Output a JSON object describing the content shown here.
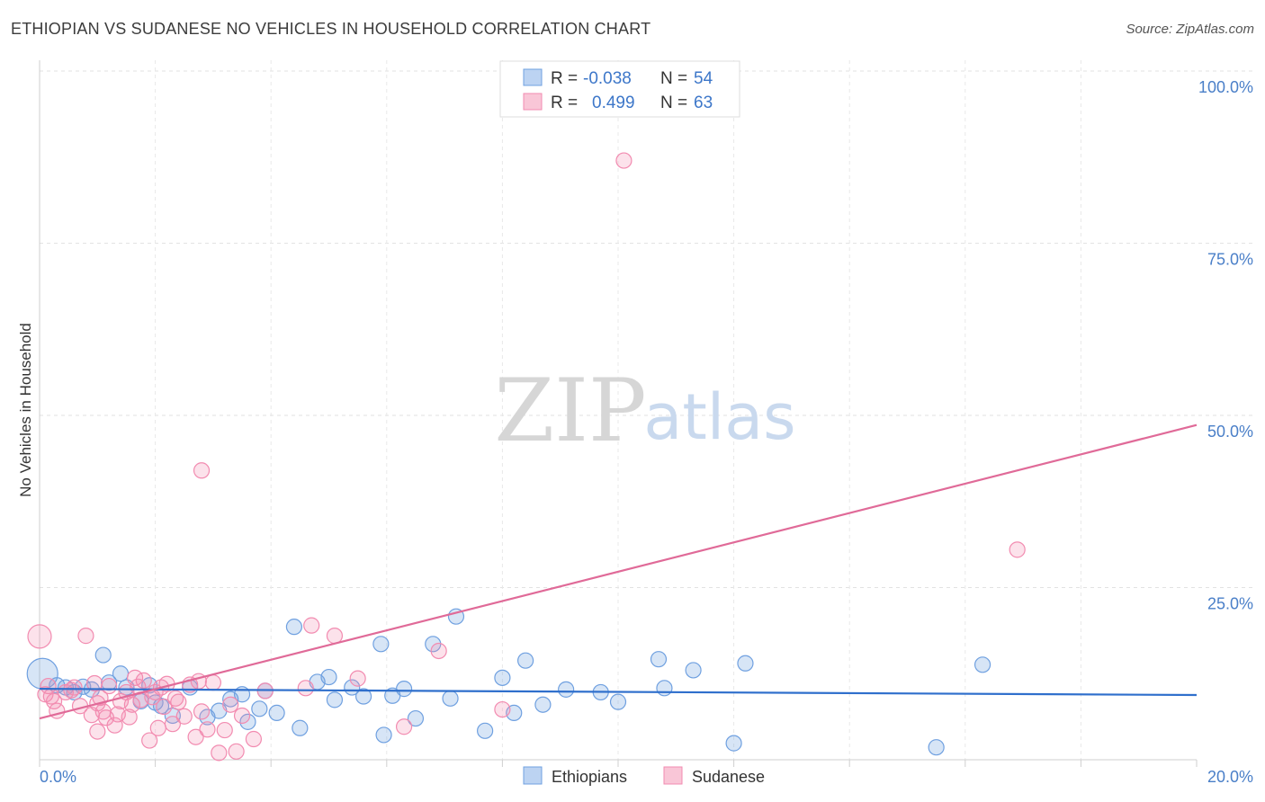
{
  "title": "ETHIOPIAN VS SUDANESE NO VEHICLES IN HOUSEHOLD CORRELATION CHART",
  "source": "Source: ZipAtlas.com",
  "watermark": {
    "zip": "ZIP",
    "atlas": "atlas"
  },
  "legend": {
    "r_label": "R =",
    "n_label": "N =",
    "items": [
      {
        "r": "-0.038",
        "n": "54"
      },
      {
        "r": "0.499",
        "n": "63"
      }
    ]
  },
  "chart_data": {
    "type": "scatter",
    "title": "ETHIOPIAN VS SUDANESE NO VEHICLES IN HOUSEHOLD CORRELATION CHART",
    "xlabel": "",
    "ylabel": "No Vehicles in Household",
    "xlim": [
      0,
      20
    ],
    "ylim": [
      0,
      100
    ],
    "x_tick_labels": [
      "0.0%",
      "20.0%"
    ],
    "y_tick_labels": [
      "100.0%",
      "75.0%",
      "50.0%",
      "25.0%"
    ],
    "y_ticks": [
      100,
      75,
      50,
      25
    ],
    "grid": true,
    "colors": {
      "ethiopians": "#6fa0e0",
      "sudanese": "#f28bb0",
      "eth_line": "#2f6fcc",
      "sud_line": "#e06a98"
    },
    "series": [
      {
        "name": "Ethiopians",
        "trend": {
          "x": [
            0,
            20
          ],
          "y": [
            10.3,
            9.4
          ]
        },
        "points": [
          [
            0.05,
            12.5
          ],
          [
            0.3,
            10.8
          ],
          [
            0.45,
            10.5
          ],
          [
            0.6,
            9.8
          ],
          [
            0.75,
            10.6
          ],
          [
            0.9,
            10.2
          ],
          [
            1.1,
            15.2
          ],
          [
            1.2,
            11.2
          ],
          [
            1.4,
            12.5
          ],
          [
            1.5,
            10.5
          ],
          [
            1.75,
            8.5
          ],
          [
            1.9,
            10.8
          ],
          [
            2.1,
            7.8
          ],
          [
            2.3,
            6.4
          ],
          [
            2.6,
            10.5
          ],
          [
            2.9,
            6.2
          ],
          [
            3.1,
            7.1
          ],
          [
            3.3,
            8.8
          ],
          [
            3.5,
            9.5
          ],
          [
            3.6,
            5.5
          ],
          [
            3.8,
            7.4
          ],
          [
            3.9,
            10.0
          ],
          [
            4.1,
            6.8
          ],
          [
            4.4,
            19.3
          ],
          [
            4.5,
            4.6
          ],
          [
            4.8,
            11.3
          ],
          [
            5.0,
            12.0
          ],
          [
            5.1,
            8.7
          ],
          [
            5.4,
            10.5
          ],
          [
            5.6,
            9.2
          ],
          [
            5.9,
            16.8
          ],
          [
            5.95,
            3.6
          ],
          [
            6.1,
            9.3
          ],
          [
            6.3,
            10.3
          ],
          [
            6.8,
            16.8
          ],
          [
            7.1,
            8.9
          ],
          [
            7.2,
            20.8
          ],
          [
            7.7,
            4.2
          ],
          [
            8.0,
            11.9
          ],
          [
            8.2,
            6.8
          ],
          [
            8.4,
            14.4
          ],
          [
            8.7,
            8.0
          ],
          [
            9.1,
            10.2
          ],
          [
            9.7,
            9.8
          ],
          [
            10.0,
            8.4
          ],
          [
            10.7,
            14.6
          ],
          [
            10.8,
            10.4
          ],
          [
            11.3,
            13.0
          ],
          [
            12.0,
            2.4
          ],
          [
            12.2,
            14.0
          ],
          [
            15.5,
            1.8
          ],
          [
            16.3,
            13.8
          ],
          [
            6.5,
            6.0
          ],
          [
            2.0,
            8.3
          ]
        ]
      },
      {
        "name": "Sudanese",
        "trend": {
          "x": [
            0,
            20
          ],
          "y": [
            6.0,
            48.6
          ]
        },
        "points": [
          [
            0.0,
            17.9
          ],
          [
            0.1,
            9.5
          ],
          [
            0.25,
            8.5
          ],
          [
            0.3,
            7.1
          ],
          [
            0.45,
            9.8
          ],
          [
            0.6,
            10.5
          ],
          [
            0.7,
            7.8
          ],
          [
            0.8,
            18.0
          ],
          [
            0.9,
            6.5
          ],
          [
            1.0,
            8.2
          ],
          [
            1.05,
            9.0
          ],
          [
            1.1,
            7.0
          ],
          [
            1.2,
            10.7
          ],
          [
            1.3,
            5.0
          ],
          [
            1.4,
            8.5
          ],
          [
            1.5,
            9.8
          ],
          [
            1.55,
            6.2
          ],
          [
            1.6,
            8.0
          ],
          [
            1.7,
            10.6
          ],
          [
            1.8,
            11.5
          ],
          [
            1.9,
            2.8
          ],
          [
            2.0,
            9.8
          ],
          [
            2.1,
            10.5
          ],
          [
            2.2,
            11.0
          ],
          [
            2.3,
            5.2
          ],
          [
            2.4,
            8.4
          ],
          [
            2.5,
            6.3
          ],
          [
            2.6,
            10.9
          ],
          [
            2.7,
            3.3
          ],
          [
            2.8,
            7.0
          ],
          [
            2.9,
            4.4
          ],
          [
            3.0,
            11.2
          ],
          [
            3.1,
            1.0
          ],
          [
            3.2,
            4.3
          ],
          [
            3.3,
            8.0
          ],
          [
            3.4,
            1.2
          ],
          [
            3.5,
            6.4
          ],
          [
            3.7,
            3.0
          ],
          [
            3.9,
            10.0
          ],
          [
            2.8,
            42.0
          ],
          [
            4.6,
            10.4
          ],
          [
            4.7,
            19.5
          ],
          [
            5.1,
            18.0
          ],
          [
            5.5,
            11.8
          ],
          [
            6.3,
            4.8
          ],
          [
            6.9,
            15.8
          ],
          [
            8.0,
            7.3
          ],
          [
            10.1,
            87.0
          ],
          [
            16.9,
            30.5
          ],
          [
            1.0,
            4.1
          ],
          [
            0.55,
            10.1
          ],
          [
            1.15,
            6.1
          ],
          [
            1.95,
            9.1
          ],
          [
            2.35,
            8.9
          ],
          [
            2.75,
            11.4
          ],
          [
            0.15,
            10.7
          ],
          [
            1.65,
            11.9
          ],
          [
            2.15,
            7.7
          ],
          [
            0.95,
            11.1
          ],
          [
            1.35,
            6.6
          ],
          [
            2.05,
            4.6
          ],
          [
            1.75,
            8.7
          ],
          [
            0.2,
            9.2
          ]
        ]
      }
    ]
  },
  "bottom_legend": [
    "Ethiopians",
    "Sudanese"
  ]
}
